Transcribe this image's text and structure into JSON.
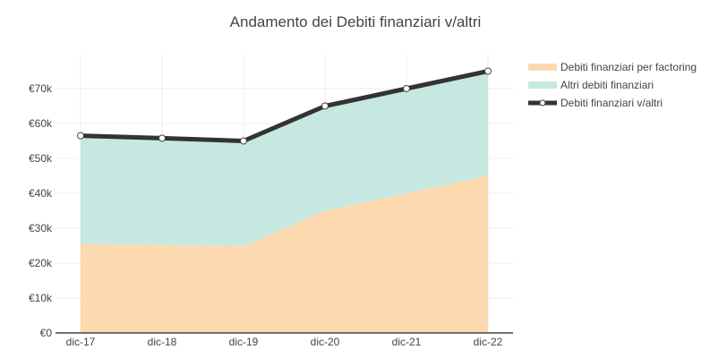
{
  "chart_data": {
    "type": "area",
    "title": "Andamento dei Debiti finanziari v/altri",
    "categories": [
      "dic-17",
      "dic-18",
      "dic-19",
      "dic-20",
      "dic-21",
      "dic-22"
    ],
    "y_ticks": [
      "€0",
      "€10k",
      "€20k",
      "€30k",
      "€40k",
      "€50k",
      "€60k",
      "€70k"
    ],
    "ylim": [
      0,
      80000
    ],
    "grid": true,
    "legend_position": "top-right",
    "series": [
      {
        "name": "Debiti finanziari per factoring",
        "kind": "stacked-area",
        "color": "#fdd9b0",
        "values": [
          25500,
          25200,
          24800,
          35000,
          40000,
          45000
        ]
      },
      {
        "name": "Altri debiti finanziari",
        "kind": "stacked-area",
        "color": "#c6e8e1",
        "values": [
          31000,
          30600,
          30200,
          30000,
          30000,
          30000
        ]
      },
      {
        "name": "Debiti finanziari v/altri",
        "kind": "line",
        "color": "#333333",
        "values": [
          56500,
          55800,
          55000,
          65000,
          70000,
          75000
        ]
      }
    ]
  }
}
